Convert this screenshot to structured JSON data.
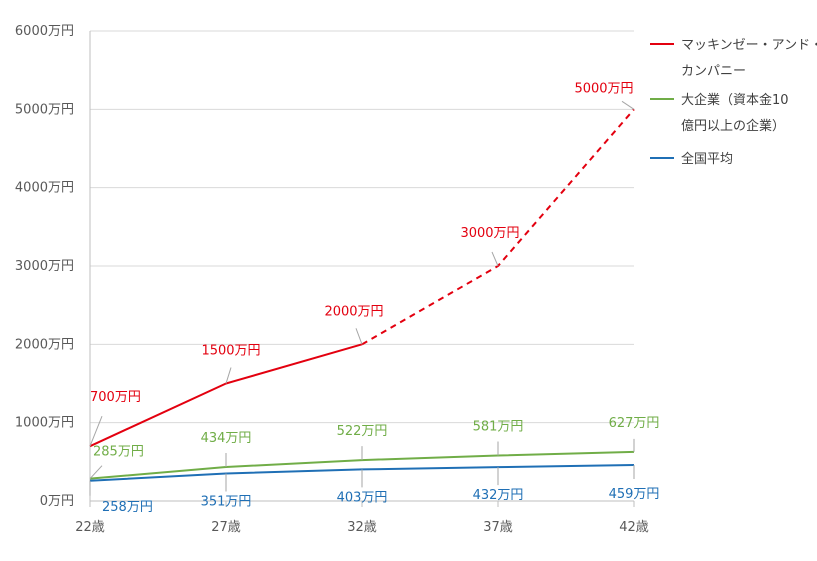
{
  "chart_data": {
    "type": "line",
    "title": "",
    "xlabel": "",
    "ylabel": "",
    "categories": [
      "22歳",
      "27歳",
      "32歳",
      "37歳",
      "42歳"
    ],
    "y_ticks": [
      "0万円",
      "1000万円",
      "2000万円",
      "3000万円",
      "4000万円",
      "5000万円",
      "6000万円"
    ],
    "ylim": [
      0,
      6000
    ],
    "grid": true,
    "legend_position": "right",
    "series": [
      {
        "name_lines": [
          "マッキンゼー・アンド・",
          "カンパニー"
        ],
        "values": [
          700,
          1500,
          2000,
          3000,
          5000
        ],
        "labels": [
          "700万円",
          "1500万円",
          "2000万円",
          "3000万円",
          "5000万円"
        ],
        "color": "#e3000f",
        "dashed_from_index": 2
      },
      {
        "name_lines": [
          "大企業（資本金10",
          "億円以上の企業）"
        ],
        "values": [
          285,
          434,
          522,
          581,
          627
        ],
        "labels": [
          "285万円",
          "434万円",
          "522万円",
          "581万円",
          "627万円"
        ],
        "color": "#70ad47"
      },
      {
        "name_lines": [
          "全国平均"
        ],
        "values": [
          258,
          351,
          403,
          432,
          459
        ],
        "labels": [
          "258万円",
          "351万円",
          "403万円",
          "432万円",
          "459万円"
        ],
        "color": "#1f6fb5"
      }
    ]
  }
}
